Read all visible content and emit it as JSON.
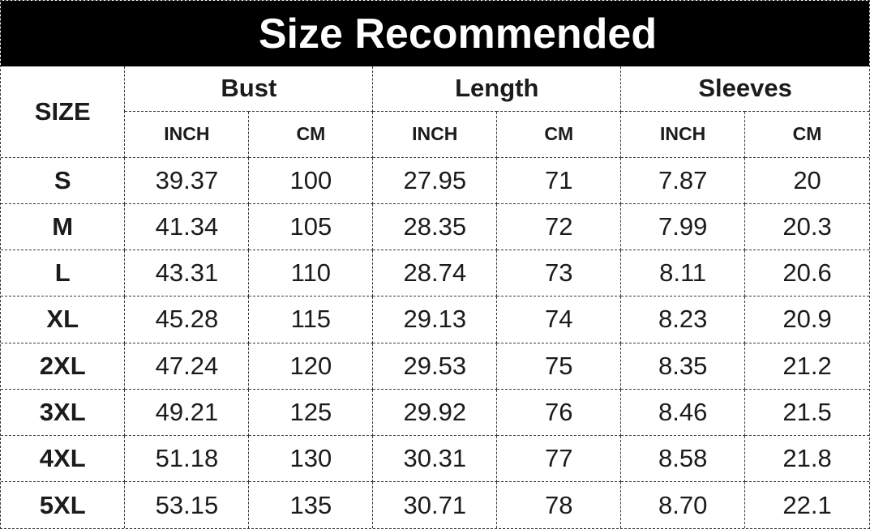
{
  "title": "Size Recommended",
  "colors": {
    "title_bar_background": "#000000",
    "title_text": "#ffffff",
    "table_background": "#ffffff",
    "body_text": "#1c1a1b",
    "border": "#3a3a3a"
  },
  "table": {
    "size_header": "SIZE",
    "group_labels": [
      "Bust",
      "Length",
      "Sleeves"
    ],
    "unit_headers": [
      "INCH",
      "CM",
      "INCH",
      "CM",
      "INCH",
      "CM"
    ],
    "rows": [
      {
        "size": "S",
        "values": [
          "39.37",
          "100",
          "27.95",
          "71",
          "7.87",
          "20"
        ]
      },
      {
        "size": "M",
        "values": [
          "41.34",
          "105",
          "28.35",
          "72",
          "7.99",
          "20.3"
        ]
      },
      {
        "size": "L",
        "values": [
          "43.31",
          "110",
          "28.74",
          "73",
          "8.11",
          "20.6"
        ]
      },
      {
        "size": "XL",
        "values": [
          "45.28",
          "115",
          "29.13",
          "74",
          "8.23",
          "20.9"
        ]
      },
      {
        "size": "2XL",
        "values": [
          "47.24",
          "120",
          "29.53",
          "75",
          "8.35",
          "21.2"
        ]
      },
      {
        "size": "3XL",
        "values": [
          "49.21",
          "125",
          "29.92",
          "76",
          "8.46",
          "21.5"
        ]
      },
      {
        "size": "4XL",
        "values": [
          "51.18",
          "130",
          "30.31",
          "77",
          "8.58",
          "21.8"
        ]
      },
      {
        "size": "5XL",
        "values": [
          "53.15",
          "135",
          "30.71",
          "78",
          "8.70",
          "22.1"
        ]
      }
    ]
  },
  "chart_data": {
    "type": "table",
    "title": "Size Recommended",
    "row_header_label": "SIZE",
    "column_groups": [
      "Bust",
      "Length",
      "Sleeves"
    ],
    "unit_subheaders": [
      "INCH",
      "CM"
    ],
    "categories": [
      "S",
      "M",
      "L",
      "XL",
      "2XL",
      "3XL",
      "4XL",
      "5XL"
    ],
    "series": [
      {
        "name": "Bust INCH",
        "values": [
          39.37,
          41.34,
          43.31,
          45.28,
          47.24,
          49.21,
          51.18,
          53.15
        ]
      },
      {
        "name": "Bust CM",
        "values": [
          100,
          105,
          110,
          115,
          120,
          125,
          130,
          135
        ]
      },
      {
        "name": "Length INCH",
        "values": [
          27.95,
          28.35,
          28.74,
          29.13,
          29.53,
          29.92,
          30.31,
          30.71
        ]
      },
      {
        "name": "Length CM",
        "values": [
          71,
          72,
          73,
          74,
          75,
          76,
          77,
          78
        ]
      },
      {
        "name": "Sleeves INCH",
        "values": [
          7.87,
          7.99,
          8.11,
          8.23,
          8.35,
          8.46,
          8.58,
          8.7
        ]
      },
      {
        "name": "Sleeves CM",
        "values": [
          20,
          20.3,
          20.6,
          20.9,
          21.2,
          21.5,
          21.8,
          22.1
        ]
      }
    ],
    "layout": {
      "title_position": "top",
      "title_style": "white-on-black",
      "grid": "dashed"
    }
  }
}
